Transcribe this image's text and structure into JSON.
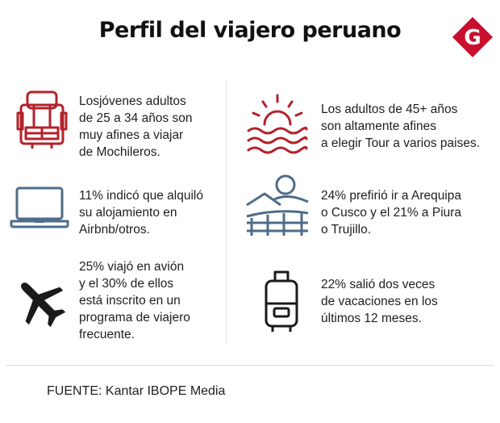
{
  "title": "Perfil del viajero peruano",
  "logo": {
    "letter": "G",
    "color": "#c8102e"
  },
  "colors": {
    "red_icon": "#b3222b",
    "blue_icon": "#4e6c89",
    "black_icon": "#1a1a1a"
  },
  "items": [
    {
      "icon": "backpack-icon",
      "text": "Losjóvenes adultos\nde 25 a 34 años son\nmuy afines a viajar\nde Mochileros."
    },
    {
      "icon": "laptop-icon",
      "text": "11% indicó que alquiló\nsu alojamiento en\nAirbnb/otros."
    },
    {
      "icon": "airplane-icon",
      "text": "25% viajó en avión\ny el 30% de ellos\nestá inscrito en un\nprograma de viajero\nfrecuente."
    },
    {
      "icon": "sunset-sea-icon",
      "text": "Los adultos de 45+ años\nson altamente afines\na elegir Tour a varios paises."
    },
    {
      "icon": "landscape-icon",
      "text": "24% prefirió ir a Arequipa\no Cusco y el 21% a Piura\no Trujillo."
    },
    {
      "icon": "suitcase-icon",
      "text": "22% salió dos veces\nde vacaciones en los\núltimos 12 meses."
    }
  ],
  "source": "FUENTE: Kantar IBOPE Media"
}
